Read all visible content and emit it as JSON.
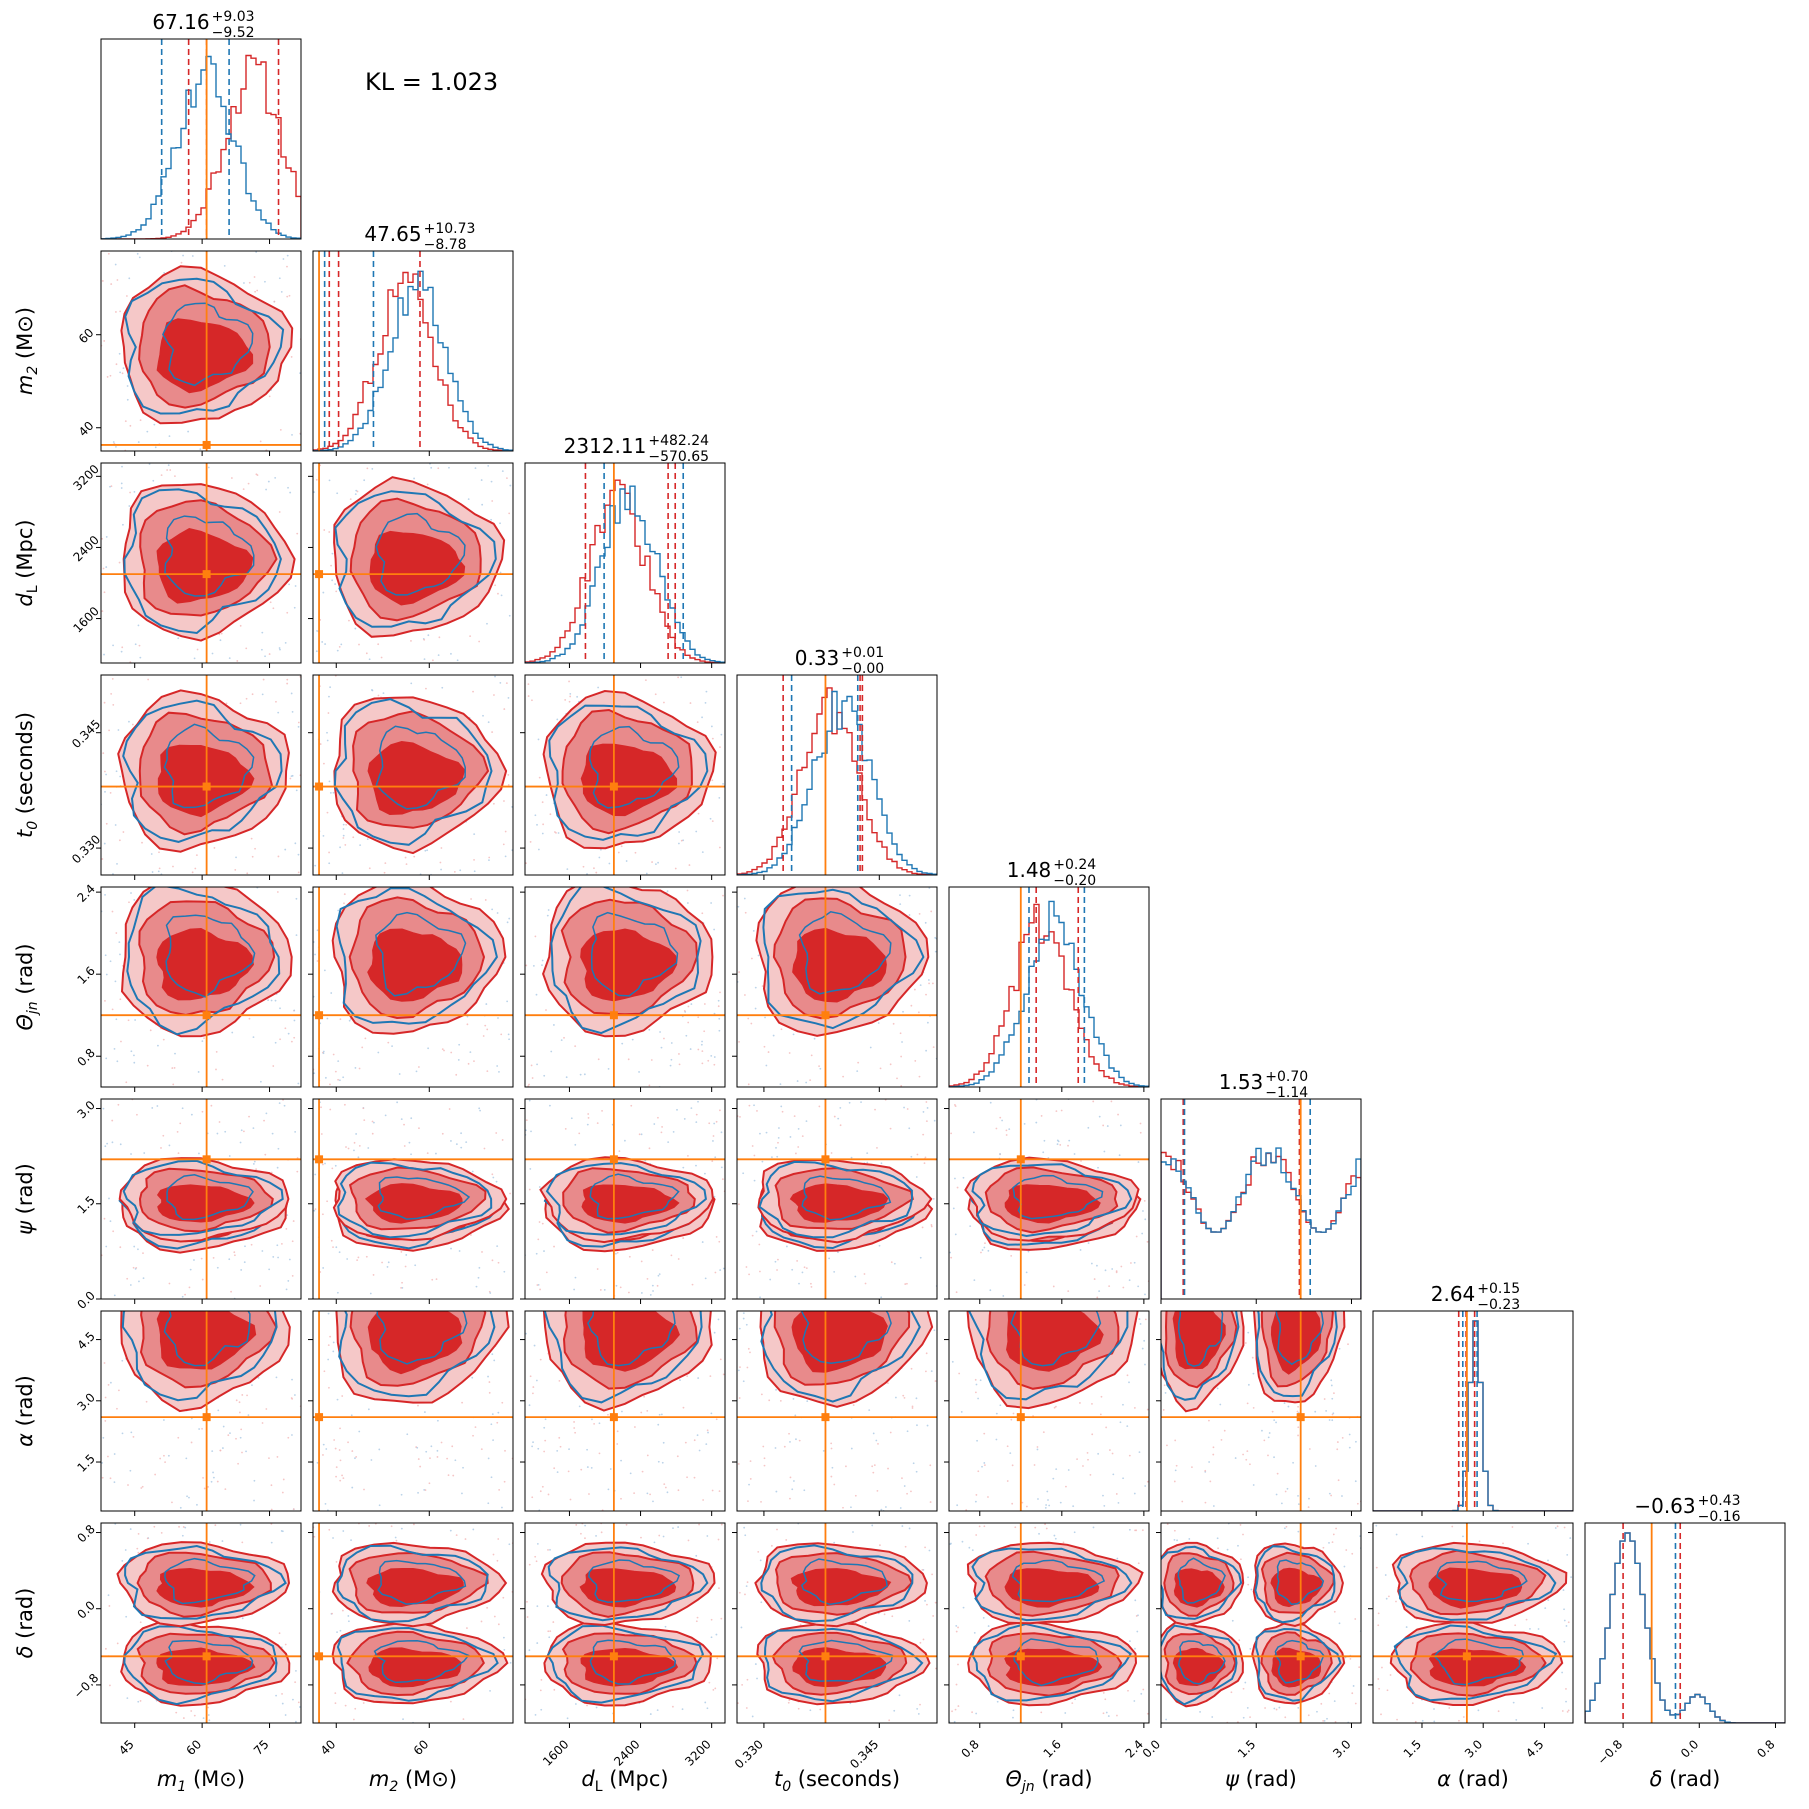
{
  "chart_data": {
    "type": "corner",
    "annotation": "KL = 1.023",
    "colors": {
      "posterior_a": "#d62728",
      "posterior_b": "#1f77b4",
      "truth": "#ff7f0e",
      "fill_dark": "#d62728",
      "fill_mid": "#e88a8b",
      "fill_light": "#f5c8c8"
    },
    "parameters": [
      {
        "key": "m1",
        "label": "m1 (M⊙)",
        "sym": "m",
        "sub": "1",
        "unit": "(M⊙)",
        "range": [
          37.5,
          82
        ],
        "ticks": [
          45,
          60,
          75
        ],
        "tick_labels": [
          "45",
          "60",
          "75"
        ],
        "truth": 61.0,
        "title": {
          "median": "67.16",
          "plus": "+9.03",
          "minus": "−9.52"
        },
        "quantiles_red": [
          57,
          61,
          77
        ],
        "quantiles_blue": [
          51,
          66
        ]
      },
      {
        "key": "m2",
        "label": "m2 (M⊙)",
        "sym": "m",
        "sub": "2",
        "unit": "(M⊙)",
        "range": [
          35,
          78
        ],
        "ticks": [
          40,
          60
        ],
        "tick_labels": [
          "40",
          "60"
        ],
        "truth": 36.3,
        "title": {
          "median": "47.65",
          "plus": "+10.73",
          "minus": "−8.78"
        },
        "quantiles_red": [
          38.5,
          40.5,
          58
        ],
        "quantiles_blue": [
          37.5,
          48
        ]
      },
      {
        "key": "dL",
        "label": "dL (Mpc)",
        "sym": "d",
        "sub": "L",
        "unit": "(Mpc)",
        "range": [
          1100,
          3350
        ],
        "ticks": [
          1600,
          2400,
          3200
        ],
        "tick_labels": [
          "1600",
          "2400",
          "3200"
        ],
        "truth": 2100,
        "title": {
          "median": "2312.11",
          "plus": "+482.24",
          "minus": "−570.65"
        },
        "quantiles_red": [
          1780,
          2710,
          2790
        ],
        "quantiles_blue": [
          1990,
          2880
        ]
      },
      {
        "key": "t0",
        "label": "t0 (seconds)",
        "sym": "t",
        "sub": "0",
        "unit": "(seconds)",
        "range": [
          0.3265,
          0.3525
        ],
        "ticks": [
          0.33,
          0.345
        ],
        "tick_labels": [
          "0.330",
          "0.345"
        ],
        "truth": 0.338,
        "title": {
          "median": "0.33",
          "plus": "+0.01",
          "minus": "−0.00"
        },
        "quantiles_red": [
          0.3325,
          0.3425,
          0.3428
        ],
        "quantiles_blue": [
          0.3336,
          0.3422
        ]
      },
      {
        "key": "theta",
        "label": "Θjn (rad)",
        "sym": "Θ",
        "sub": "jn",
        "unit": "(rad)",
        "range": [
          0.5,
          2.45
        ],
        "ticks": [
          0.8,
          1.6,
          2.4
        ],
        "tick_labels": [
          "0.8",
          "1.6",
          "2.4"
        ],
        "truth": 1.2,
        "title": {
          "median": "1.48",
          "plus": "+0.24",
          "minus": "−0.20"
        },
        "quantiles_red": [
          1.35,
          1.76
        ],
        "quantiles_blue": [
          1.28,
          1.82
        ]
      },
      {
        "key": "psi",
        "label": "ψ (rad)",
        "sym": "ψ",
        "sub": "",
        "unit": "(rad)",
        "range": [
          0,
          3.15
        ],
        "ticks": [
          0,
          1.5,
          3
        ],
        "tick_labels": [
          "0.0",
          "1.5",
          "3.0"
        ],
        "truth": 2.2,
        "title": {
          "median": "1.53",
          "plus": "+0.70",
          "minus": "−1.14"
        },
        "quantiles_red": [
          0.35,
          2.18
        ],
        "quantiles_blue": [
          0.37,
          2.35
        ]
      },
      {
        "key": "alpha",
        "label": "α (rad)",
        "sym": "α",
        "sub": "",
        "unit": "(rad)",
        "range": [
          0.3,
          5.2
        ],
        "ticks": [
          1.5,
          3,
          4.5
        ],
        "tick_labels": [
          "1.5",
          "3.0",
          "4.5"
        ],
        "truth": 2.6,
        "title": {
          "median": "2.64",
          "plus": "+0.15",
          "minus": "−0.23"
        },
        "quantiles_red": [
          2.4,
          2.58,
          2.79
        ],
        "quantiles_blue": [
          2.5,
          2.85
        ]
      },
      {
        "key": "delta",
        "label": "δ (rad)",
        "sym": "δ",
        "sub": "",
        "unit": "(rad)",
        "range": [
          -1.2,
          0.9
        ],
        "ticks": [
          -0.8,
          0,
          0.8
        ],
        "tick_labels": [
          "−0.8",
          "0.0",
          "0.8"
        ],
        "truth": -0.5,
        "title": {
          "median": "−0.63",
          "plus": "+0.43",
          "minus": "−0.16"
        },
        "quantiles_red": [
          -0.8,
          -0.2
        ],
        "quantiles_blue": [
          -0.25
        ]
      }
    ]
  }
}
